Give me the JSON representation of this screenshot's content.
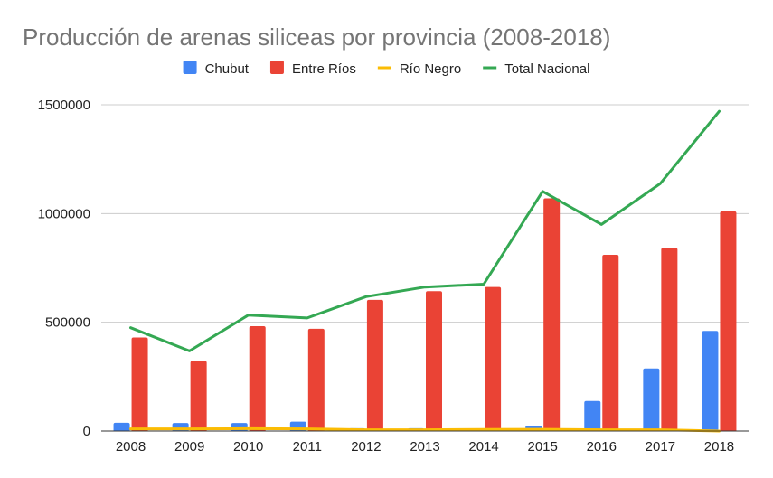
{
  "chart_data": {
    "type": "bar",
    "title": "Producción de arenas siliceas por provincia (2008-2018)",
    "xlabel": "",
    "ylabel": "",
    "categories": [
      "2008",
      "2009",
      "2010",
      "2011",
      "2012",
      "2013",
      "2014",
      "2015",
      "2016",
      "2017",
      "2018"
    ],
    "ylim": [
      0,
      1500000
    ],
    "yticks": [
      0,
      500000,
      1000000,
      1500000
    ],
    "ytick_labels": [
      "0",
      "500000",
      "1000000",
      "1500000"
    ],
    "grid": true,
    "legend_position": "top",
    "series": [
      {
        "name": "Chubut",
        "kind": "bar",
        "color": "#4285f4",
        "values": [
          38000,
          37000,
          37000,
          43000,
          13000,
          13000,
          0,
          25000,
          138000,
          288000,
          460000
        ]
      },
      {
        "name": "Entre Ríos",
        "kind": "bar",
        "color": "#ea4335",
        "values": [
          430000,
          322000,
          482000,
          470000,
          603000,
          643000,
          662000,
          1070000,
          810000,
          842000,
          1010000
        ]
      },
      {
        "name": "Río Negro",
        "kind": "line",
        "color": "#fbbc04",
        "values": [
          10000,
          10000,
          11000,
          10000,
          6000,
          6000,
          7000,
          8000,
          6000,
          6000,
          0
        ]
      },
      {
        "name": "Total Nacional",
        "kind": "line",
        "color": "#34a853",
        "values": [
          475000,
          368000,
          533000,
          520000,
          618000,
          662000,
          675000,
          1102000,
          950000,
          1138000,
          1470000
        ]
      }
    ]
  }
}
